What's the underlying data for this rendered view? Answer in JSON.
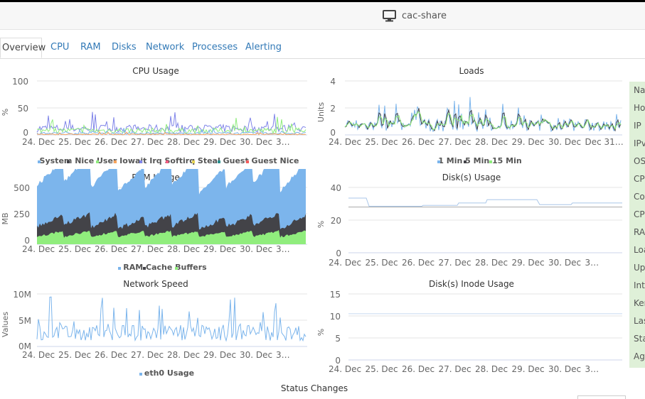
{
  "header": {
    "title": "cac-share",
    "icon": "monitor-icon"
  },
  "tabs": [
    {
      "label": "Overview",
      "active": true
    },
    {
      "label": "CPU",
      "active": false
    },
    {
      "label": "RAM",
      "active": false
    },
    {
      "label": "Disks",
      "active": false
    },
    {
      "label": "Network",
      "active": false
    },
    {
      "label": "Processes",
      "active": false
    },
    {
      "label": "Alerting",
      "active": false
    }
  ],
  "x_ticks": [
    "24. Dec",
    "25. Dec",
    "26. Dec",
    "27. Dec",
    "28. Dec",
    "29. Dec",
    "30. Dec",
    "3…"
  ],
  "x_ticks_loads": [
    "24. Dec",
    "25. Dec",
    "26. Dec",
    "27. Dec",
    "28. Dec",
    "29. Dec",
    "30. Dec",
    "Dec 31…"
  ],
  "chart_data": [
    {
      "type": "line",
      "title": "CPU Usage",
      "ylabel": "%",
      "ylim": [
        0,
        100
      ],
      "yticks": [
        "0",
        "50",
        "100"
      ],
      "series": [
        {
          "name": "System",
          "color": "#7cb5ec"
        },
        {
          "name": "Nice",
          "color": "#434348"
        },
        {
          "name": "User",
          "color": "#90ed7d"
        },
        {
          "name": "Iowait",
          "color": "#f7a35c"
        },
        {
          "name": "Irq",
          "color": "#8085e9"
        },
        {
          "name": "Softirq",
          "color": "#f15c80"
        },
        {
          "name": "Steal",
          "color": "#e4d354"
        },
        {
          "name": "Guest",
          "color": "#2b908f"
        },
        {
          "name": "Guest Nice",
          "color": "#f45b5b"
        }
      ],
      "legend_text": "System Nice User Iowait Irq Softirq Steal Guest Guest Nice"
    },
    {
      "type": "line",
      "title": "Loads",
      "ylabel": "Units",
      "ylim": [
        0,
        4
      ],
      "yticks": [
        "0",
        "2",
        "4"
      ],
      "series": [
        {
          "name": "1 Min",
          "color": "#7cb5ec"
        },
        {
          "name": "5 Min",
          "color": "#434348"
        },
        {
          "name": "15 Min",
          "color": "#90ed7d"
        }
      ],
      "legend_text": "1 Min 5 Min 15 Min"
    },
    {
      "type": "area",
      "title": "RAM Usage",
      "ylabel": "MB",
      "ylim": [
        0,
        500
      ],
      "yticks": [
        "0",
        "250",
        "500"
      ],
      "series": [
        {
          "name": "RAM",
          "color": "#7cb5ec"
        },
        {
          "name": "Cache",
          "color": "#434348"
        },
        {
          "name": "Buffers",
          "color": "#90ed7d"
        }
      ],
      "legend_text": "RAM Cache Buffers"
    },
    {
      "type": "line",
      "title": "Disk(s) Usage",
      "ylabel": "%",
      "ylim": [
        0,
        40
      ],
      "yticks": [
        "0",
        "20",
        "40"
      ],
      "series": [
        {
          "name": "",
          "color": "#a9c6e8"
        },
        {
          "name": "",
          "color": "#aaaaaa"
        }
      ]
    },
    {
      "type": "line",
      "title": "Network Speed",
      "ylabel": "Values",
      "ylim": [
        0,
        10000000
      ],
      "yticks": [
        "0M",
        "5M",
        "10M"
      ],
      "series": [
        {
          "name": "eth0 Usage",
          "color": "#7cb5ec"
        }
      ],
      "legend_text": "eth0 Usage"
    },
    {
      "type": "line",
      "title": "Disk(s) Inode Usage",
      "ylabel": "%",
      "ylim": [
        0,
        15
      ],
      "yticks": [
        "0",
        "5",
        "10",
        "15"
      ],
      "series": [
        {
          "name": "",
          "color": "#c6d9f0"
        }
      ]
    }
  ],
  "side_labels": [
    "Na",
    "Ho",
    "IP",
    "IPv",
    "OS",
    "CP",
    "Co",
    "CP",
    "RA",
    "Loa",
    "Up",
    "Inte",
    "Ker",
    "Las",
    "Sta",
    "Ag"
  ],
  "status_changes": "Status Changes"
}
